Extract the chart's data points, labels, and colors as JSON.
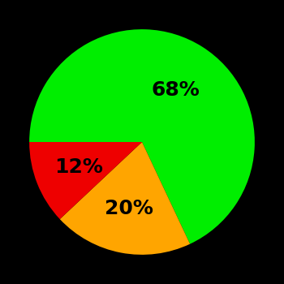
{
  "slices": [
    68,
    20,
    12
  ],
  "colors": [
    "#00ee00",
    "#ffa500",
    "#ee0000"
  ],
  "labels": [
    "68%",
    "20%",
    "12%"
  ],
  "background_color": "#000000",
  "text_color": "#000000",
  "startangle": 180,
  "figsize": [
    3.5,
    3.5
  ],
  "dpi": 100,
  "label_fontsize": 18,
  "label_fontweight": "bold",
  "label_radii": [
    0.55,
    0.6,
    0.6
  ]
}
